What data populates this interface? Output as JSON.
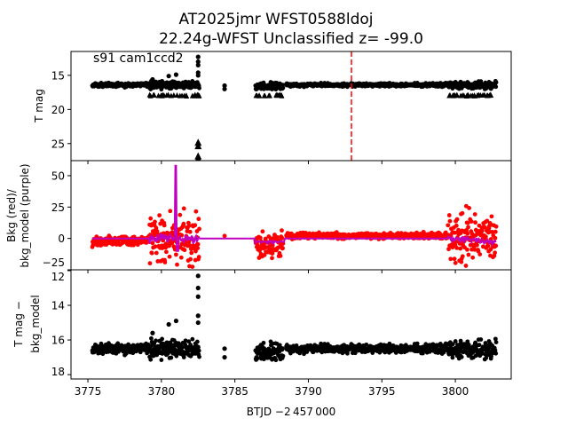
{
  "chart_data": {
    "type": "scatter",
    "title_line1": "AT2025jmr  WFST0588ldoj",
    "title_line2": "22.24g-WFST Unclassified z= -99.0",
    "annotation": "s91 cam1ccd2",
    "xlabel": "BTJD −2 457 000",
    "xlim": [
      3773.85,
      3803.8
    ],
    "xticks": [
      "3775",
      "3780",
      "3785",
      "3790",
      "3795",
      "3800"
    ],
    "xtick_values": [
      3775,
      3780,
      3785,
      3790,
      3795,
      3800
    ],
    "marker_line": {
      "x": 3792.93,
      "color": "#ff0000",
      "style": "dashed"
    },
    "panels": [
      {
        "ylabel": "T mag",
        "ylim": [
          27.5,
          11.5
        ],
        "inverted": true,
        "yticks": [
          "15",
          "20",
          "25"
        ],
        "ytick_values": [
          15,
          20,
          25
        ]
      },
      {
        "ylabel1": "Bkg (red)/",
        "ylabel2": "bkg_model (purple)",
        "ylim": [
          -25,
          62
        ],
        "yticks": [
          "50",
          "25",
          "0",
          "−25"
        ],
        "ytick_values": [
          50,
          25,
          0,
          -25
        ],
        "colors": {
          "bkg": "#ff0000",
          "model": "#bf00bf"
        }
      },
      {
        "ylabel1": "T mag −",
        "ylabel2": "bkg_model",
        "ylim": [
          18.25,
          11.95
        ],
        "inverted": true,
        "yticks": [
          "12",
          "14",
          "16",
          "18"
        ],
        "ytick_values": [
          12,
          14,
          16,
          18
        ]
      }
    ],
    "segments": [
      {
        "t": [
          3775.3,
          3779.2
        ],
        "mag": 16.5,
        "mag_scatter": 0.25,
        "bkg": -2,
        "bkg_scatter": 6,
        "noisy": false
      },
      {
        "t": [
          3779.2,
          3782.6
        ],
        "mag": 16.5,
        "mag_scatter": 0.45,
        "bkg": 0,
        "bkg_scatter": 18,
        "noisy": true
      },
      {
        "t": [
          3786.4,
          3788.3
        ],
        "mag": 16.7,
        "mag_scatter": 0.45,
        "bkg": -6,
        "bkg_scatter": 10,
        "noisy": true
      },
      {
        "t": [
          3788.5,
          3799.5
        ],
        "mag": 16.5,
        "mag_scatter": 0.2,
        "bkg": 2,
        "bkg_scatter": 4,
        "noisy": false
      },
      {
        "t": [
          3799.5,
          3802.8
        ],
        "mag": 16.6,
        "mag_scatter": 0.45,
        "bkg": 0,
        "bkg_scatter": 18,
        "noisy": true
      }
    ],
    "outliers_mag": [
      [
        3782.5,
        12.3
      ],
      [
        3782.5,
        13.0
      ],
      [
        3782.5,
        13.5
      ],
      [
        3782.5,
        14.6
      ],
      [
        3782.5,
        15.0
      ],
      [
        3784.3,
        16.5
      ],
      [
        3784.3,
        17.0
      ],
      [
        3781.0,
        14.9
      ],
      [
        3780.5,
        15.1
      ],
      [
        3779.4,
        15.6
      ]
    ],
    "upper_limits_mag": [
      [
        3782.5,
        24.8
      ],
      [
        3782.5,
        25.3
      ],
      [
        3782.5,
        26.8
      ],
      [
        3782.5,
        27.2
      ]
    ],
    "model_spike": {
      "t": 3781.0,
      "peak": 58,
      "dip": -10
    }
  }
}
